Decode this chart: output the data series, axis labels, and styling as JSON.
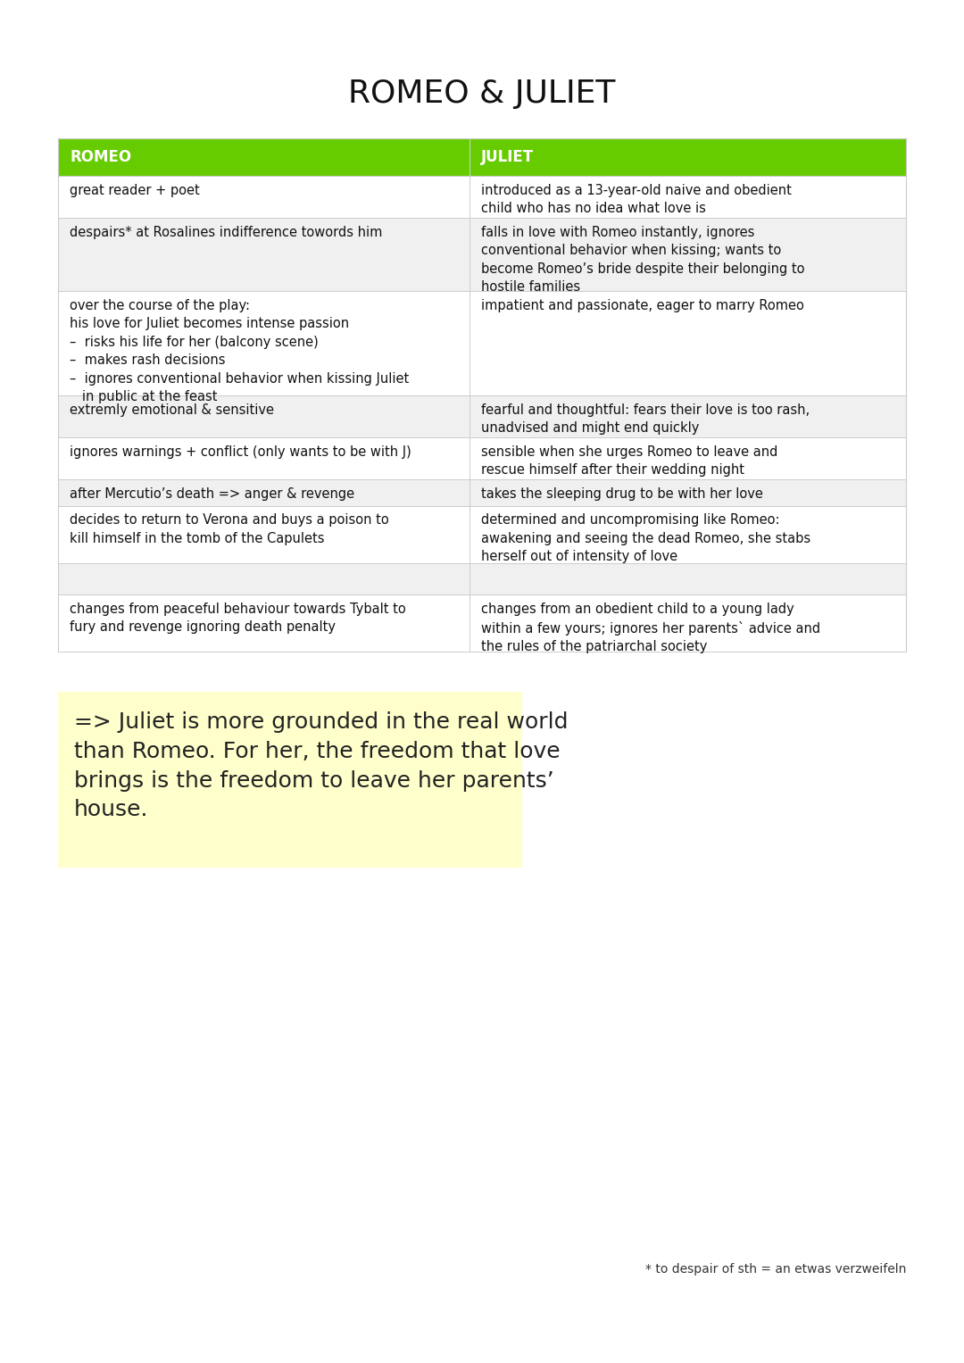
{
  "title": "ROMEO & JULIET",
  "title_fontsize": 26,
  "background_color": "#ffffff",
  "header_bg": "#66cc00",
  "header_text_color": "#ffffff",
  "header_font_size": 12,
  "cell_font_size": 10.5,
  "col1_header": "ROMEO",
  "col2_header": "JULIET",
  "rows": [
    {
      "romeo": "great reader + poet",
      "juliet": "introduced as a 13-year-old naive and obedient\nchild who has no idea what love is",
      "bg": "#ffffff",
      "romeo_lines": 1,
      "juliet_lines": 2
    },
    {
      "romeo": "despairs* at Rosalines indifference towords him",
      "juliet": "falls in love with Romeo instantly, ignores\nconventional behavior when kissing; wants to\nbecome Romeo’s bride despite their belonging to\nhostile families",
      "bg": "#f0f0f0",
      "romeo_lines": 1,
      "juliet_lines": 4
    },
    {
      "romeo": "over the course of the play:\nhis love for Juliet becomes intense passion\n–  risks his life for her (balcony scene)\n–  makes rash decisions\n–  ignores conventional behavior when kissing Juliet\n   in public at the feast",
      "juliet": "impatient and passionate, eager to marry Romeo",
      "bg": "#ffffff",
      "romeo_lines": 6,
      "juliet_lines": 1
    },
    {
      "romeo": "extremly emotional & sensitive",
      "juliet": "fearful and thoughtful: fears their love is too rash,\nunadvised and might end quickly",
      "bg": "#f0f0f0",
      "romeo_lines": 1,
      "juliet_lines": 2
    },
    {
      "romeo": "ignores warnings + conflict (only wants to be with J)",
      "juliet": "sensible when she urges Romeo to leave and\nrescue himself after their wedding night",
      "bg": "#ffffff",
      "romeo_lines": 1,
      "juliet_lines": 2
    },
    {
      "romeo": "after Mercutio’s death => anger & revenge",
      "juliet": "takes the sleeping drug to be with her love",
      "bg": "#f0f0f0",
      "romeo_lines": 1,
      "juliet_lines": 1
    },
    {
      "romeo": "decides to return to Verona and buys a poison to\nkill himself in the tomb of the Capulets",
      "juliet": "determined and uncompromising like Romeo:\nawakening and seeing the dead Romeo, she stabs\nherself out of intensity of love",
      "bg": "#ffffff",
      "romeo_lines": 2,
      "juliet_lines": 3
    },
    {
      "romeo": "",
      "juliet": "",
      "bg": "#f0f0f0",
      "romeo_lines": 1,
      "juliet_lines": 1
    },
    {
      "romeo": "changes from peaceful behaviour towards Tybalt to\nfury and revenge ignoring death penalty",
      "juliet": "changes from an obedient child to a young lady\nwithin a few yours; ignores her parents` advice and\nthe rules of the patriarchal society",
      "bg": "#ffffff",
      "romeo_lines": 2,
      "juliet_lines": 3
    }
  ],
  "note_text": "=> Juliet is more grounded in the real world\nthan Romeo. For her, the freedom that love\nbrings is the freedom to leave her parents’\nhouse.",
  "note_bg": "#ffffcc",
  "note_fontsize": 18,
  "footnote": "* to despair of sth = an etwas verzweifeln",
  "footnote_fontsize": 10
}
